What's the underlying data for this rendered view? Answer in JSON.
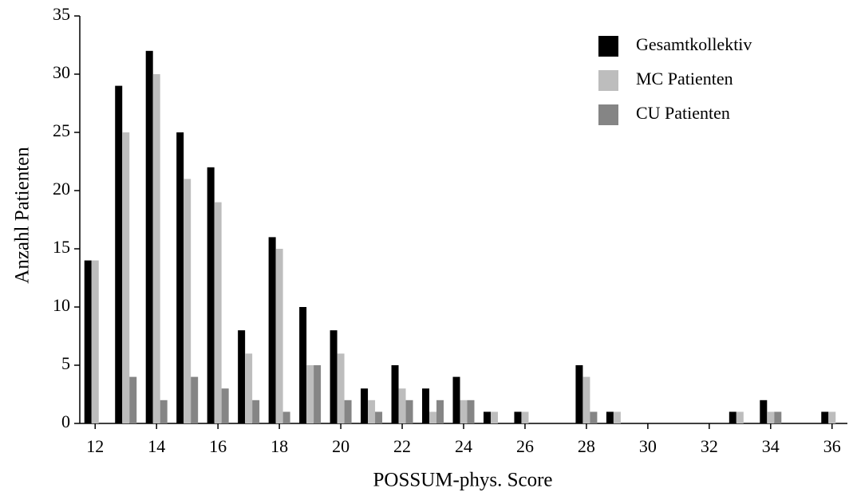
{
  "chart_data": {
    "type": "bar",
    "x_label": "POSSUM-phys. Score",
    "y_label": "Anzahl Patienten",
    "x": [
      12,
      13,
      14,
      15,
      16,
      17,
      18,
      19,
      20,
      21,
      22,
      23,
      24,
      25,
      26,
      27,
      28,
      29,
      30,
      31,
      32,
      33,
      34,
      35,
      36
    ],
    "series": [
      {
        "name": "Gesamtkollektiv",
        "color": "#000000",
        "values": [
          14,
          29,
          32,
          25,
          22,
          8,
          16,
          10,
          8,
          3,
          5,
          3,
          4,
          1,
          1,
          0,
          5,
          1,
          0,
          0,
          0,
          1,
          2,
          0,
          1
        ]
      },
      {
        "name": "MC Patienten",
        "color": "#bdbdbd",
        "values": [
          14,
          25,
          30,
          21,
          19,
          6,
          15,
          5,
          6,
          2,
          3,
          1,
          2,
          1,
          1,
          0,
          4,
          1,
          0,
          0,
          0,
          1,
          1,
          0,
          1
        ]
      },
      {
        "name": "CU Patienten",
        "color": "#858585",
        "values": [
          0,
          4,
          2,
          4,
          3,
          2,
          1,
          5,
          2,
          1,
          2,
          2,
          2,
          0,
          0,
          0,
          1,
          0,
          0,
          0,
          0,
          0,
          1,
          0,
          0
        ]
      }
    ],
    "xlim": [
      11.5,
      36.5
    ],
    "xticks": [
      12,
      14,
      16,
      18,
      20,
      22,
      24,
      26,
      28,
      30,
      32,
      34,
      36
    ],
    "ylim": [
      0,
      35
    ],
    "yticks": [
      0,
      5,
      10,
      15,
      20,
      25,
      30,
      35
    ],
    "legend": "upper right"
  }
}
